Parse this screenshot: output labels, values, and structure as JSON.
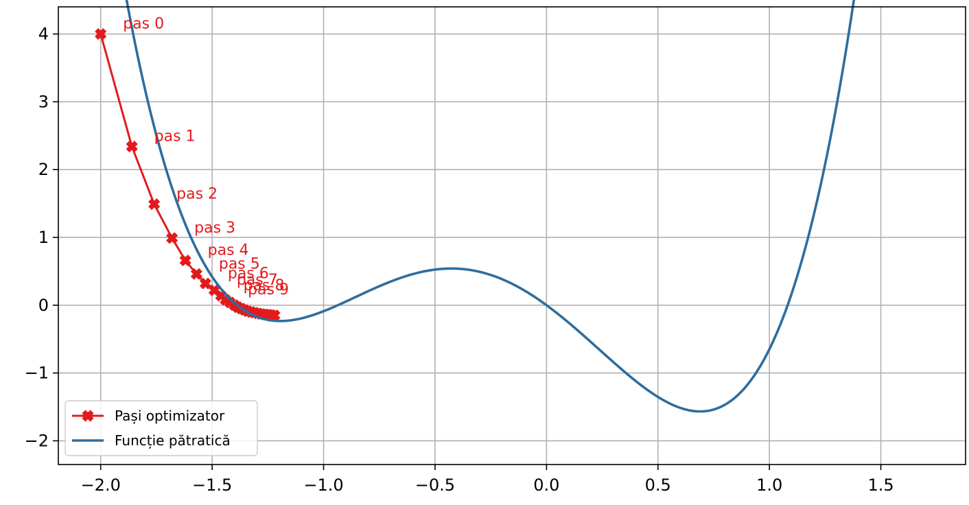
{
  "chart_data": {
    "type": "line",
    "title": "",
    "xlabel": "",
    "ylabel": "",
    "xlim": [
      -2.19,
      1.88
    ],
    "ylim": [
      -2.35,
      4.4
    ],
    "grid": true,
    "x_ticks": [
      -2.0,
      -1.5,
      -1.0,
      -0.5,
      0.0,
      0.5,
      1.0,
      1.5
    ],
    "x_tick_labels": [
      "−2.0",
      "−1.5",
      "−1.0",
      "−0.5",
      "0.0",
      "0.5",
      "1.0",
      "1.5"
    ],
    "y_ticks": [
      -2,
      -1,
      0,
      1,
      2,
      3,
      4
    ],
    "y_tick_labels": [
      "−2",
      "−1",
      "0",
      "1",
      "2",
      "3",
      "4"
    ],
    "legend_placement": "lower-left",
    "series": [
      {
        "name": "Pași optimizator",
        "color": "#e31a1c",
        "marker": "X",
        "points": [
          {
            "x": -2.0,
            "y": 4.0,
            "label": "pas 0"
          },
          {
            "x": -1.86,
            "y": 2.34,
            "label": "pas 1"
          },
          {
            "x": -1.76,
            "y": 1.49,
            "label": "pas 2"
          },
          {
            "x": -1.68,
            "y": 0.99,
            "label": "pas 3"
          },
          {
            "x": -1.62,
            "y": 0.66,
            "label": "pas 4"
          },
          {
            "x": -1.57,
            "y": 0.46,
            "label": "pas 5"
          },
          {
            "x": -1.53,
            "y": 0.32,
            "label": "pas 6"
          },
          {
            "x": -1.49,
            "y": 0.22,
            "label": "pas 7"
          },
          {
            "x": -1.46,
            "y": 0.14,
            "label": "pas 8"
          },
          {
            "x": -1.44,
            "y": 0.08,
            "label": "pas 9"
          },
          {
            "x": -1.42,
            "y": 0.04
          },
          {
            "x": -1.4,
            "y": 0.0
          },
          {
            "x": -1.385,
            "y": -0.03
          },
          {
            "x": -1.37,
            "y": -0.05
          },
          {
            "x": -1.355,
            "y": -0.07
          },
          {
            "x": -1.34,
            "y": -0.09
          },
          {
            "x": -1.325,
            "y": -0.1
          },
          {
            "x": -1.31,
            "y": -0.11
          },
          {
            "x": -1.295,
            "y": -0.12
          },
          {
            "x": -1.28,
            "y": -0.13
          },
          {
            "x": -1.265,
            "y": -0.135
          },
          {
            "x": -1.25,
            "y": -0.14
          },
          {
            "x": -1.235,
            "y": -0.145
          },
          {
            "x": -1.22,
            "y": -0.15
          }
        ]
      },
      {
        "name": "Funcție pătratică",
        "color": "#2e6d9e",
        "function": "x^4 + x^3 - 2x^2 - x + ... (fitted polynomial)",
        "coefficients_a_to_e": [
          1.7156,
          2.1311,
          -2.0844,
          -2.4111,
          0.0
        ],
        "x_range": [
          -2.0,
          1.7
        ]
      }
    ]
  }
}
